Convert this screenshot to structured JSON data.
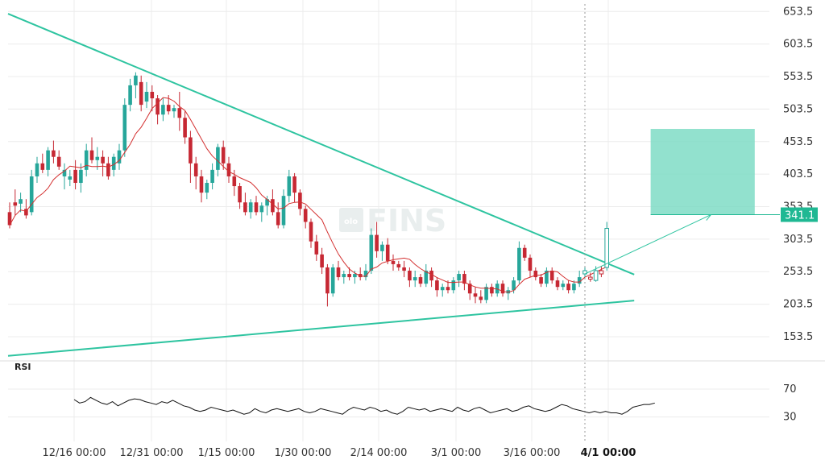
{
  "watermark": {
    "text": "FINS",
    "badge": "olo"
  },
  "colors": {
    "up": "#26a69a",
    "down": "#c62833",
    "trendline": "#2ec4a0",
    "ma": "#d32f2f",
    "target_box": "#7fdcc6",
    "arrow": "#2ec4a0",
    "rsi": "#111111",
    "grid": "#ececec",
    "badge": "#1fb893",
    "crosshair": "#999999"
  },
  "chart_data": {
    "type": "candlestick",
    "price_axis": {
      "ticks": [
        "653.5",
        "603.5",
        "553.5",
        "503.5",
        "453.5",
        "403.5",
        "353.5",
        "303.5",
        "253.5",
        "203.5",
        "153.5"
      ],
      "range": [
        120,
        665
      ],
      "current_price": "341.1"
    },
    "x_axis": {
      "labels": [
        "12/16 00:00",
        "12/31 00:00",
        "1/15 00:00",
        "1/30 00:00",
        "2/14 00:00",
        "3/1 00:00",
        "3/16 00:00",
        "4/1 00:00"
      ],
      "highlighted_label": "4/1 00:00"
    },
    "candles": [
      [
        345,
        360,
        320,
        325
      ],
      [
        360,
        380,
        340,
        355
      ],
      [
        358,
        375,
        345,
        365
      ],
      [
        350,
        365,
        335,
        340
      ],
      [
        345,
        410,
        340,
        400
      ],
      [
        400,
        430,
        390,
        420
      ],
      [
        420,
        435,
        405,
        410
      ],
      [
        410,
        445,
        400,
        440
      ],
      [
        440,
        455,
        420,
        430
      ],
      [
        430,
        440,
        410,
        415
      ],
      [
        400,
        420,
        380,
        410
      ],
      [
        395,
        410,
        385,
        400
      ],
      [
        410,
        425,
        380,
        390
      ],
      [
        390,
        420,
        375,
        410
      ],
      [
        410,
        450,
        400,
        440
      ],
      [
        440,
        460,
        420,
        425
      ],
      [
        425,
        445,
        410,
        430
      ],
      [
        430,
        440,
        400,
        420
      ],
      [
        420,
        430,
        395,
        400
      ],
      [
        410,
        435,
        400,
        430
      ],
      [
        420,
        450,
        410,
        440
      ],
      [
        440,
        520,
        430,
        510
      ],
      [
        510,
        550,
        500,
        540
      ],
      [
        540,
        560,
        520,
        555
      ],
      [
        545,
        555,
        500,
        510
      ],
      [
        515,
        545,
        505,
        530
      ],
      [
        530,
        540,
        500,
        520
      ],
      [
        520,
        525,
        480,
        495
      ],
      [
        495,
        520,
        485,
        510
      ],
      [
        510,
        525,
        495,
        500
      ],
      [
        500,
        510,
        490,
        505
      ],
      [
        505,
        530,
        470,
        490
      ],
      [
        490,
        500,
        450,
        460
      ],
      [
        460,
        470,
        390,
        420
      ],
      [
        420,
        430,
        380,
        400
      ],
      [
        400,
        410,
        360,
        375
      ],
      [
        375,
        395,
        365,
        390
      ],
      [
        390,
        420,
        380,
        410
      ],
      [
        410,
        450,
        400,
        445
      ],
      [
        445,
        455,
        410,
        420
      ],
      [
        420,
        430,
        390,
        400
      ],
      [
        400,
        410,
        370,
        385
      ],
      [
        385,
        390,
        350,
        360
      ],
      [
        360,
        375,
        340,
        345
      ],
      [
        345,
        365,
        335,
        360
      ],
      [
        360,
        370,
        340,
        345
      ],
      [
        345,
        360,
        330,
        355
      ],
      [
        355,
        370,
        340,
        365
      ],
      [
        365,
        380,
        340,
        345
      ],
      [
        345,
        360,
        320,
        325
      ],
      [
        325,
        380,
        320,
        370
      ],
      [
        370,
        410,
        360,
        400
      ],
      [
        400,
        405,
        360,
        375
      ],
      [
        375,
        380,
        340,
        350
      ],
      [
        350,
        355,
        320,
        330
      ],
      [
        330,
        335,
        290,
        300
      ],
      [
        300,
        310,
        270,
        280
      ],
      [
        280,
        290,
        250,
        260
      ],
      [
        260,
        265,
        200,
        220
      ],
      [
        220,
        265,
        215,
        260
      ],
      [
        260,
        270,
        240,
        245
      ],
      [
        245,
        255,
        235,
        250
      ],
      [
        250,
        260,
        240,
        245
      ],
      [
        245,
        255,
        235,
        250
      ],
      [
        250,
        260,
        240,
        245
      ],
      [
        245,
        265,
        240,
        255
      ],
      [
        255,
        320,
        250,
        310
      ],
      [
        310,
        330,
        275,
        285
      ],
      [
        285,
        300,
        270,
        295
      ],
      [
        295,
        305,
        265,
        270
      ],
      [
        270,
        280,
        255,
        265
      ],
      [
        265,
        270,
        255,
        260
      ],
      [
        260,
        270,
        245,
        255
      ],
      [
        255,
        260,
        230,
        240
      ],
      [
        240,
        255,
        230,
        245
      ],
      [
        245,
        250,
        230,
        235
      ],
      [
        235,
        265,
        230,
        255
      ],
      [
        255,
        260,
        230,
        240
      ],
      [
        240,
        245,
        215,
        225
      ],
      [
        225,
        235,
        215,
        230
      ],
      [
        230,
        240,
        220,
        225
      ],
      [
        225,
        245,
        220,
        240
      ],
      [
        240,
        255,
        230,
        250
      ],
      [
        250,
        255,
        225,
        235
      ],
      [
        235,
        240,
        210,
        220
      ],
      [
        220,
        230,
        205,
        215
      ],
      [
        215,
        225,
        205,
        210
      ],
      [
        210,
        235,
        205,
        230
      ],
      [
        230,
        235,
        215,
        220
      ],
      [
        220,
        240,
        215,
        235
      ],
      [
        235,
        240,
        215,
        220
      ],
      [
        220,
        230,
        210,
        225
      ],
      [
        225,
        245,
        220,
        240
      ],
      [
        240,
        300,
        235,
        290
      ],
      [
        290,
        295,
        270,
        275
      ],
      [
        275,
        280,
        245,
        255
      ],
      [
        255,
        260,
        240,
        245
      ],
      [
        245,
        250,
        230,
        235
      ],
      [
        235,
        260,
        230,
        255
      ],
      [
        255,
        260,
        235,
        240
      ],
      [
        240,
        245,
        225,
        230
      ],
      [
        230,
        240,
        225,
        235
      ],
      [
        235,
        240,
        220,
        225
      ],
      [
        225,
        240,
        220,
        235
      ],
      [
        235,
        255,
        230,
        245
      ]
    ],
    "projection_candles": [
      [
        250,
        260,
        245,
        255
      ],
      [
        245,
        252,
        238,
        242
      ],
      [
        240,
        262,
        238,
        255
      ],
      [
        255,
        262,
        245,
        250
      ],
      [
        260,
        330,
        255,
        320
      ]
    ],
    "trendlines": [
      {
        "from": [
          0,
          650
        ],
        "to": [
          114,
          249
        ]
      },
      {
        "from": [
          0,
          124
        ],
        "to": [
          114,
          209
        ]
      }
    ],
    "target_box": {
      "x_from": 117,
      "x_to": 136,
      "price_top": 473,
      "price_bottom": 341
    },
    "rsi": {
      "title": "RSI",
      "ticks": [
        "70",
        "30"
      ],
      "range": [
        10,
        85
      ],
      "values": [
        55,
        50,
        52,
        58,
        54,
        50,
        48,
        52,
        46,
        50,
        54,
        56,
        55,
        52,
        50,
        48,
        52,
        50,
        54,
        50,
        46,
        44,
        40,
        38,
        40,
        44,
        42,
        40,
        38,
        40,
        37,
        34,
        36,
        42,
        38,
        36,
        40,
        42,
        40,
        38,
        40,
        42,
        38,
        36,
        38,
        42,
        40,
        38,
        36,
        34,
        40,
        44,
        42,
        40,
        44,
        42,
        38,
        40,
        36,
        34,
        38,
        44,
        42,
        40,
        42,
        38,
        40,
        42,
        40,
        38,
        44,
        40,
        38,
        42,
        44,
        40,
        36,
        38,
        40,
        42,
        38,
        40,
        44,
        46,
        42,
        40,
        38,
        40,
        44,
        48,
        46,
        42,
        40,
        38,
        36,
        38,
        36,
        38,
        36,
        36,
        34,
        38,
        44,
        46,
        48,
        48,
        50
      ]
    }
  }
}
